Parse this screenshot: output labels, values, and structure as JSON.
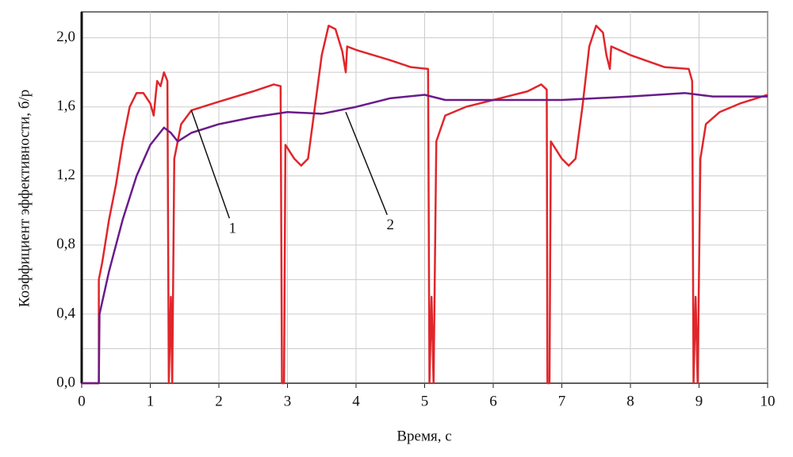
{
  "chart_data": {
    "type": "line",
    "xlabel": "Время, с",
    "ylabel": "Коэффициент эффективности, б/р",
    "xlim": [
      0,
      10
    ],
    "ylim": [
      0,
      2.15
    ],
    "xticks": [
      0,
      1,
      2,
      3,
      4,
      5,
      6,
      7,
      8,
      9,
      10
    ],
    "yticks": [
      {
        "value": 0,
        "label": "0,0"
      },
      {
        "value": 0.4,
        "label": "0,4"
      },
      {
        "value": 0.8,
        "label": "0,8"
      },
      {
        "value": 1.2,
        "label": "1,2"
      },
      {
        "value": 1.6,
        "label": "1,6"
      },
      {
        "value": 2.0,
        "label": "2,0"
      }
    ],
    "yminor": [
      0.2,
      0.6,
      1.0,
      1.4,
      1.8
    ],
    "grid": true,
    "series": [
      {
        "name": "1",
        "color": "#e0262b",
        "x": [
          0,
          0.25,
          0.25,
          0.3,
          0.4,
          0.5,
          0.6,
          0.7,
          0.8,
          0.9,
          1.0,
          1.05,
          1.1,
          1.15,
          1.2,
          1.25,
          1.27,
          1.3,
          1.32,
          1.35,
          1.45,
          1.6,
          2.0,
          2.5,
          2.8,
          2.9,
          2.92,
          2.95,
          2.97,
          3.1,
          3.2,
          3.3,
          3.4,
          3.5,
          3.6,
          3.7,
          3.8,
          3.85,
          3.87,
          4.0,
          4.5,
          4.8,
          5.05,
          5.07,
          5.1,
          5.13,
          5.17,
          5.3,
          5.6,
          6.0,
          6.5,
          6.7,
          6.78,
          6.79,
          6.82,
          6.84,
          7.0,
          7.1,
          7.2,
          7.3,
          7.4,
          7.5,
          7.6,
          7.65,
          7.7,
          7.72,
          8.0,
          8.5,
          8.85,
          8.9,
          8.92,
          8.95,
          8.98,
          9.02,
          9.1,
          9.3,
          9.6,
          10
        ],
        "values": [
          0,
          0,
          0.6,
          0.7,
          0.95,
          1.15,
          1.4,
          1.6,
          1.68,
          1.68,
          1.62,
          1.55,
          1.75,
          1.72,
          1.8,
          1.75,
          0,
          0.5,
          0,
          1.3,
          1.5,
          1.58,
          1.63,
          1.69,
          1.73,
          1.72,
          0,
          0,
          1.38,
          1.3,
          1.26,
          1.3,
          1.6,
          1.9,
          2.07,
          2.05,
          1.92,
          1.8,
          1.95,
          1.93,
          1.87,
          1.83,
          1.82,
          0,
          0.5,
          0,
          1.4,
          1.55,
          1.6,
          1.64,
          1.69,
          1.73,
          1.7,
          0,
          0,
          1.4,
          1.3,
          1.26,
          1.3,
          1.6,
          1.95,
          2.07,
          2.03,
          1.9,
          1.82,
          1.95,
          1.9,
          1.83,
          1.82,
          1.75,
          0,
          0.5,
          0,
          1.3,
          1.5,
          1.57,
          1.62,
          1.67
        ]
      },
      {
        "name": "2",
        "color": "#6a1b8a",
        "x": [
          0,
          0.25,
          0.26,
          0.4,
          0.6,
          0.8,
          1.0,
          1.2,
          1.3,
          1.4,
          1.6,
          2,
          2.5,
          3,
          3.5,
          4,
          4.5,
          5,
          5.3,
          6,
          7,
          8,
          8.8,
          9.2,
          10
        ],
        "values": [
          0,
          0,
          0.4,
          0.65,
          0.95,
          1.2,
          1.38,
          1.48,
          1.45,
          1.4,
          1.45,
          1.5,
          1.54,
          1.57,
          1.56,
          1.6,
          1.65,
          1.67,
          1.64,
          1.64,
          1.64,
          1.66,
          1.68,
          1.66,
          1.66
        ]
      }
    ]
  }
}
